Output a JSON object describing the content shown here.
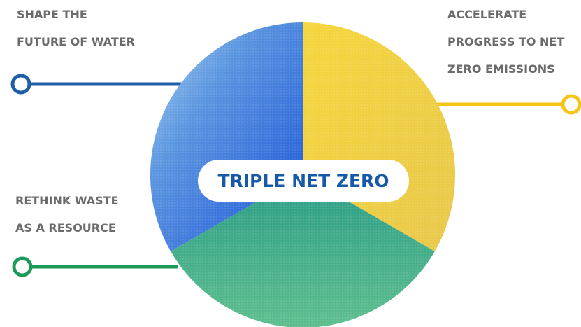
{
  "center": {
    "label": "TRIPLE NET ZERO"
  },
  "goals": [
    {
      "lines": [
        "SHAPE THE",
        "FUTURE OF WATER"
      ]
    },
    {
      "lines": [
        "ACCELERATE",
        "PROGRESS TO NET",
        "ZERO EMISSIONS"
      ]
    },
    {
      "lines": [
        "RETHINK WASTE",
        "AS A RESOURCE"
      ]
    }
  ]
}
